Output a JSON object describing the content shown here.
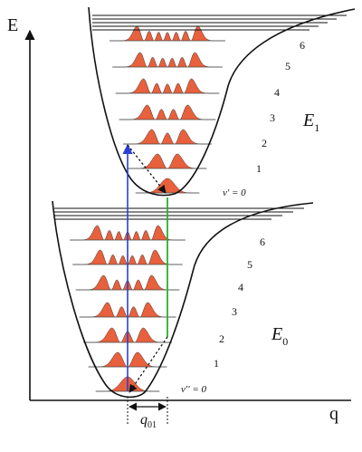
{
  "axes": {
    "y_label": "E",
    "x_label": "q"
  },
  "upper_state": {
    "label_main": "E",
    "label_sub": "1",
    "level_numbers": [
      "6",
      "5",
      "4",
      "3",
      "2",
      "1"
    ],
    "ground_label": "v' = 0"
  },
  "lower_state": {
    "label_main": "E",
    "label_sub": "0",
    "level_numbers": [
      "6",
      "5",
      "4",
      "3",
      "2",
      "1"
    ],
    "ground_label": "v'' = 0"
  },
  "displacement": {
    "label_main": "q",
    "label_sub": "01"
  },
  "colors": {
    "wavefunction_fill": "#e8603c",
    "absorption_arrow": "#2b3fd6",
    "zero_phonon_line": "#27b12b",
    "curve": "#111111"
  }
}
